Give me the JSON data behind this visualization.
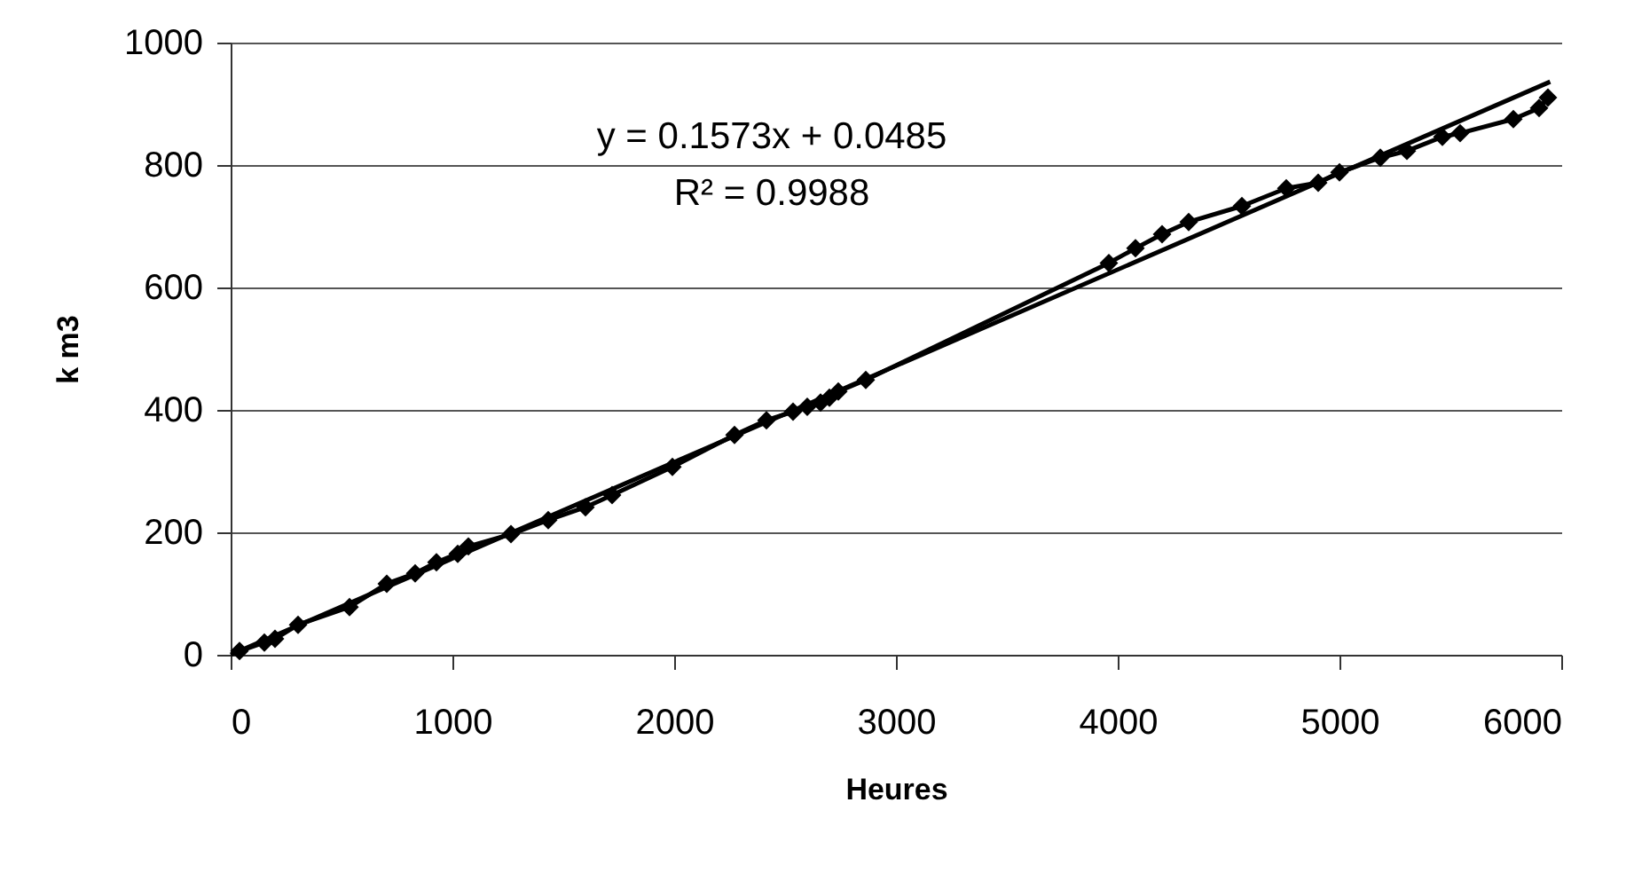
{
  "chart_data": {
    "type": "line",
    "xlabel": "Heures",
    "ylabel": "k m3",
    "annotations": [
      "y = 0.1573x + 0.0485",
      "R² = 0.9988"
    ],
    "series": [
      {
        "color": "#000000",
        "marker": "diamond",
        "x": [
          40,
          152,
          200,
          304,
          536,
          704,
          832,
          928,
          1024,
          1072,
          1264,
          1432,
          1600,
          1720,
          1992,
          2272,
          2416,
          2536,
          2600,
          2660,
          2700,
          2740,
          2864,
          3960,
          4080,
          4200,
          4320,
          4560,
          4760,
          4904,
          5000,
          5184,
          5304,
          5464,
          5544,
          5784,
          5900,
          5940
        ],
        "values": [
          6,
          20,
          26,
          49,
          78,
          116,
          133,
          151,
          165,
          177,
          197,
          220,
          241,
          261,
          307,
          359,
          383,
          397,
          405,
          412,
          420,
          430,
          449,
          640,
          664,
          687,
          707,
          733,
          762,
          771,
          788,
          812,
          823,
          846,
          852,
          875,
          893,
          910
        ]
      },
      {
        "type": "line",
        "color": "#000000",
        "marker": "none",
        "x": [
          0,
          5950
        ],
        "values": [
          0,
          936
        ]
      }
    ],
    "xlim": [
      0,
      6000
    ],
    "xticks": [
      0,
      1000,
      2000,
      3000,
      4000,
      5000,
      6000
    ],
    "ylim": [
      0,
      1000
    ],
    "yticks": [
      0,
      200,
      400,
      600,
      800,
      1000
    ],
    "grid": "y"
  }
}
